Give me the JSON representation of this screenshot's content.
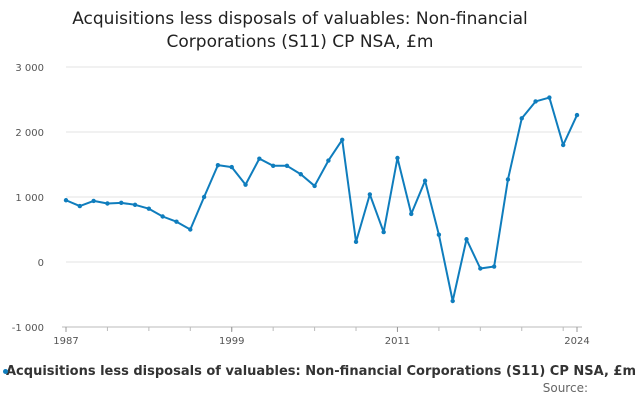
{
  "chart_data": {
    "type": "line",
    "title_line1": "Acquisitions less disposals of valuables: Non-financial",
    "title_line2": "Corporations (S11) CP NSA, £m",
    "x": [
      1987,
      1988,
      1989,
      1990,
      1991,
      1992,
      1993,
      1994,
      1995,
      1996,
      1997,
      1998,
      1999,
      2000,
      2001,
      2002,
      2003,
      2004,
      2005,
      2006,
      2007,
      2008,
      2009,
      2010,
      2011,
      2012,
      2013,
      2014,
      2015,
      2016,
      2017,
      2018,
      2019,
      2020,
      2021,
      2022,
      2023,
      2024
    ],
    "series": [
      {
        "name": "Acquisitions less disposals of valuables: Non-financial Corporations (S11) CP NSA, £m",
        "color": "#0f7dbd",
        "values": [
          950,
          860,
          940,
          900,
          910,
          880,
          820,
          700,
          620,
          500,
          1000,
          1490,
          1460,
          1190,
          1590,
          1480,
          1480,
          1350,
          1170,
          1560,
          1880,
          310,
          1040,
          460,
          1600,
          740,
          1250,
          420,
          -600,
          350,
          -100,
          -70,
          1270,
          2210,
          2470,
          2530,
          1800,
          2260
        ]
      }
    ],
    "ylim": [
      -1000,
      3000
    ],
    "yticks": [
      -1000,
      0,
      1000,
      2000,
      3000
    ],
    "ytick_labels": [
      "-1 000",
      "0",
      "1 000",
      "2 000",
      "3 000"
    ],
    "xlim": [
      1987,
      2024
    ],
    "xticks": [
      1987,
      1999,
      2011,
      2024
    ],
    "xtick_labels": [
      "1987",
      "1999",
      "2011",
      "2024"
    ],
    "grid": true,
    "legend_label": "Acquisitions less disposals of valuables: Non-financial Corporations (S11) CP NSA, £m",
    "source_label": "Source:"
  }
}
